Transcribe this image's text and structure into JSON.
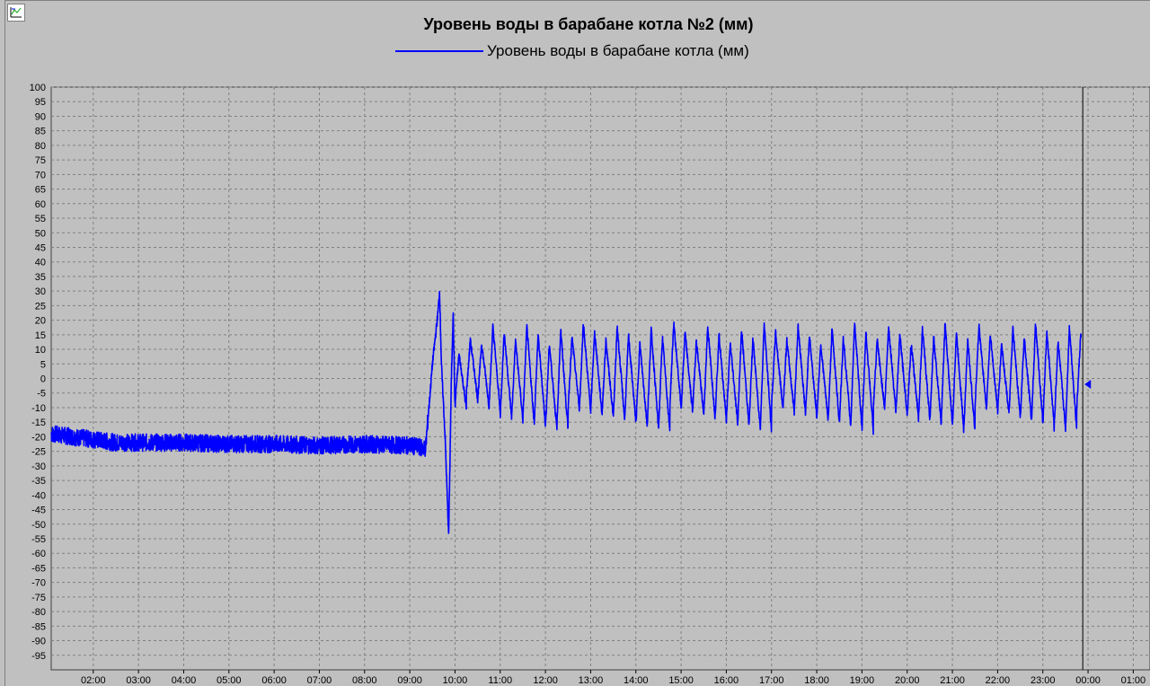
{
  "chart_data": {
    "type": "line",
    "title": "Уровень воды в барабане котла №2 (мм)",
    "series": [
      {
        "name": "Уровень воды в барабане котла (мм)",
        "color": "#0000ff"
      }
    ],
    "ylim": [
      -100,
      100
    ],
    "yticks": [
      "100",
      "95",
      "90",
      "85",
      "80",
      "75",
      "70",
      "65",
      "60",
      "55",
      "50",
      "45",
      "40",
      "35",
      "30",
      "25",
      "20",
      "15",
      "10",
      "5",
      "0",
      "-5",
      "-10",
      "-15",
      "-20",
      "-25",
      "-30",
      "-35",
      "-40",
      "-45",
      "-50",
      "-55",
      "-60",
      "-65",
      "-70",
      "-75",
      "-80",
      "-85",
      "-90",
      "-95"
    ],
    "xticks": [
      "02:00",
      "03:00",
      "04:00",
      "05:00",
      "06:00",
      "07:00",
      "08:00",
      "09:00",
      "10:00",
      "11:00",
      "12:00",
      "13:00",
      "14:00",
      "15:00",
      "16:00",
      "17:00",
      "18:00",
      "19:00",
      "20:00",
      "21:00",
      "22:00",
      "23:00",
      "00:00",
      "01:00"
    ],
    "x_range_hours": [
      1.07,
      25.37
    ],
    "cursor_time": "23:53",
    "grid": true,
    "legend": "top-center",
    "key_points": [
      {
        "t": 1.07,
        "v": -19
      },
      {
        "t": 2.5,
        "v": -22
      },
      {
        "t": 4.0,
        "v": -22
      },
      {
        "t": 5.0,
        "v": -22.5
      },
      {
        "t": 6.0,
        "v": -22.5
      },
      {
        "t": 7.0,
        "v": -23
      },
      {
        "t": 8.0,
        "v": -22.5
      },
      {
        "t": 9.0,
        "v": -23
      },
      {
        "t": 9.35,
        "v": -24
      },
      {
        "t": 9.5,
        "v": 5
      },
      {
        "t": 9.62,
        "v": 22
      },
      {
        "t": 9.66,
        "v": 30
      },
      {
        "t": 9.7,
        "v": 5
      },
      {
        "t": 9.78,
        "v": -20
      },
      {
        "t": 9.86,
        "v": -54
      },
      {
        "t": 9.92,
        "v": 0
      },
      {
        "t": 9.96,
        "v": 23
      },
      {
        "t": 10.0,
        "v": -10
      },
      {
        "t": 10.1,
        "v": 12
      },
      {
        "t": 11.0,
        "v": 2
      },
      {
        "t": 23.85,
        "v": 3
      }
    ],
    "oscillation": {
      "start": 10.0,
      "end": 23.85,
      "period_hours": 0.25,
      "peak_range": [
        12,
        19
      ],
      "trough_range": [
        -18,
        -9
      ]
    }
  }
}
